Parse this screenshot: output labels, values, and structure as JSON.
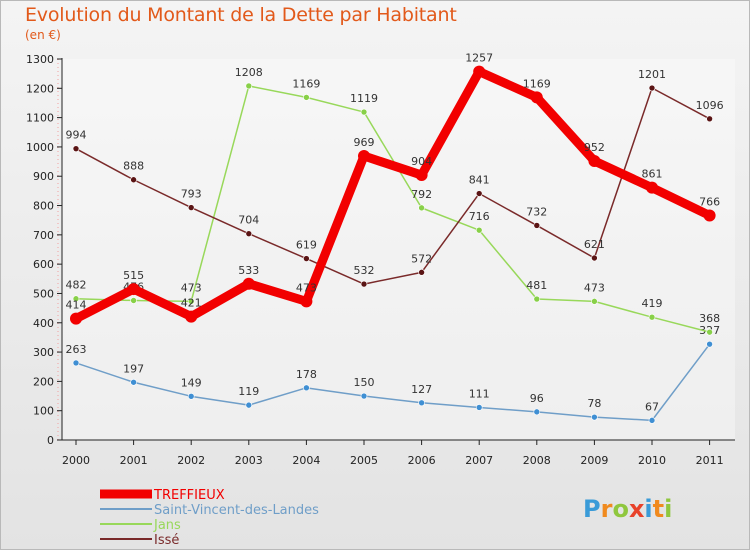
{
  "chart_data": {
    "type": "line",
    "title": "Evolution du Montant de la Dette par Habitant",
    "subtitle": "(en €)",
    "x": [
      "2000",
      "2001",
      "2002",
      "2003",
      "2004",
      "2005",
      "2006",
      "2007",
      "2008",
      "2009",
      "2010",
      "2011"
    ],
    "ylim": [
      0,
      1300
    ],
    "yticks": [
      0,
      100,
      200,
      300,
      400,
      500,
      600,
      700,
      800,
      900,
      1000,
      1100,
      1200,
      1300
    ],
    "grid": false,
    "legend_position": "bottom-left",
    "series": [
      {
        "name": "Saint-Vincent-des-Landes",
        "color": "#6f9ec8",
        "marker": "#3f8fd3",
        "values": [
          263,
          197,
          149,
          119,
          178,
          150,
          127,
          111,
          96,
          78,
          67,
          327
        ]
      },
      {
        "name": "Jans",
        "color": "#98d85a",
        "marker": "#88d048",
        "values": [
          482,
          476,
          473,
          1208,
          1169,
          1119,
          792,
          716,
          481,
          473,
          419,
          368
        ]
      },
      {
        "name": "Issé",
        "color": "#7a2a2a",
        "marker": "#5a1414",
        "values": [
          994,
          888,
          793,
          704,
          619,
          532,
          572,
          841,
          732,
          621,
          1201,
          1096
        ]
      },
      {
        "name": "TREFFIEUX",
        "color": "#f20000",
        "marker": "#f20000",
        "values": [
          414,
          515,
          421,
          533,
          473,
          969,
          904,
          1257,
          1169,
          952,
          861,
          766
        ]
      }
    ],
    "legend_order": [
      "TREFFIEUX",
      "Saint-Vincent-des-Landes",
      "Jans",
      "Issé"
    ],
    "logo_letters": [
      "P",
      "r",
      "o",
      "x",
      "i",
      "t",
      "i"
    ]
  }
}
